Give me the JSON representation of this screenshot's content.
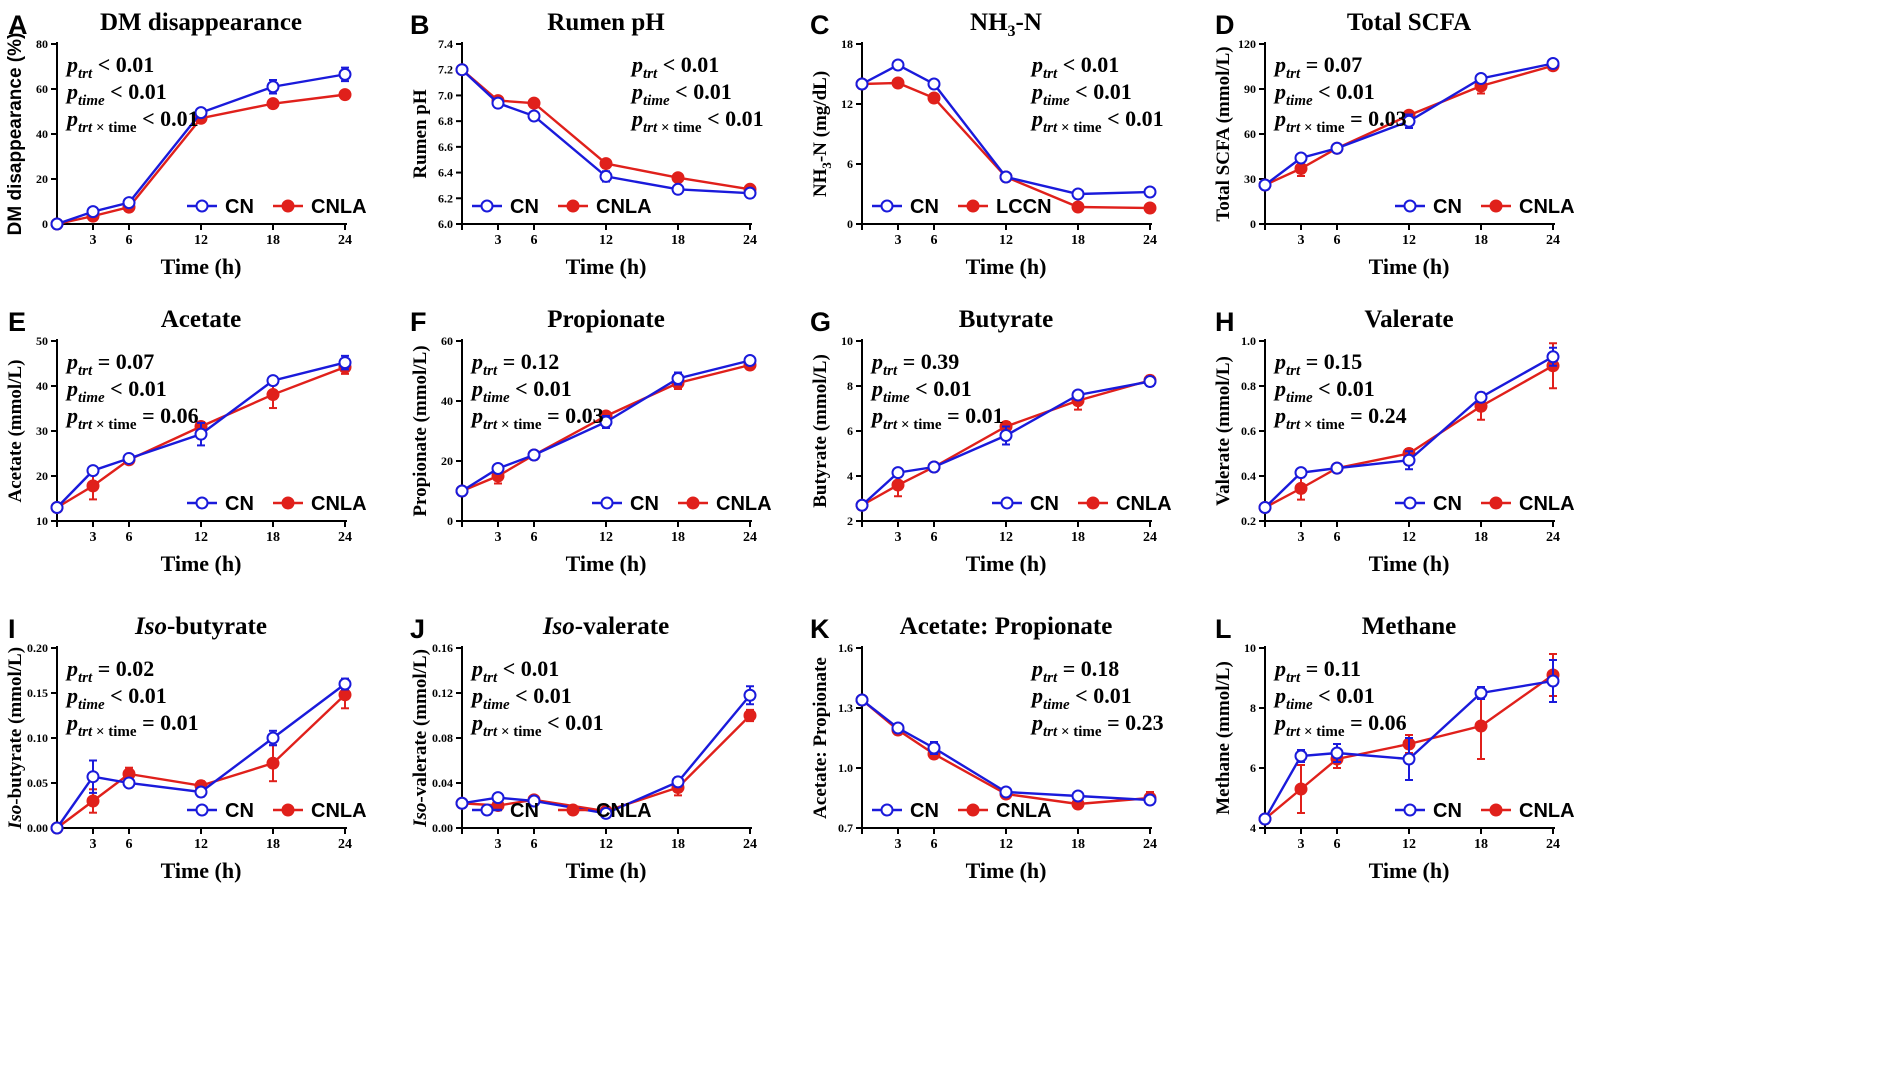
{
  "colors": {
    "cn": "#1a1adb",
    "trt": "#e0201b",
    "axis": "#000000"
  },
  "chart_data": [
    {
      "type": "line",
      "panel_letter": "A",
      "title": "DM disappearance",
      "title_parts": [],
      "ylabel": "DM disappearance (%)",
      "ylabel_parts": [],
      "xlabel": "Time (h)",
      "x": [
        0,
        3,
        6,
        12,
        18,
        24
      ],
      "ylim": [
        0,
        80
      ],
      "yticks": [
        0,
        20,
        40,
        60,
        80
      ],
      "ytick_labels": [
        "0",
        "20",
        "40",
        "60",
        "80"
      ],
      "series": [
        {
          "name": "CN",
          "values": [
            0,
            5.5,
            9.5,
            49.5,
            61,
            66.5
          ],
          "errors": [
            0,
            1,
            1,
            1.5,
            3,
            3
          ]
        },
        {
          "name": "CNLA",
          "values": [
            0,
            3.5,
            7.5,
            47,
            53.5,
            57.5
          ],
          "errors": [
            0,
            0.5,
            0.5,
            1,
            1,
            1
          ]
        }
      ],
      "stats": [
        {
          "name": "trt",
          "value": "< 0.01"
        },
        {
          "name": "time",
          "value": "< 0.01"
        },
        {
          "name": "trt × time",
          "value": "< 0.01"
        }
      ],
      "stats_pos": "top-left",
      "legend_pos": "bottom-right"
    },
    {
      "type": "line",
      "panel_letter": "B",
      "title": "Rumen pH",
      "title_parts": [],
      "ylabel": "Rumen pH",
      "ylabel_parts": [],
      "xlabel": "Time (h)",
      "x": [
        0,
        3,
        6,
        12,
        18,
        24
      ],
      "ylim": [
        6.0,
        7.4
      ],
      "yticks": [
        6.0,
        6.2,
        6.4,
        6.6,
        6.8,
        7.0,
        7.2,
        7.4
      ],
      "ytick_labels": [
        "6.0",
        "6.2",
        "6.4",
        "6.6",
        "6.8",
        "7.0",
        "7.2",
        "7.4"
      ],
      "series": [
        {
          "name": "CN",
          "values": [
            7.2,
            6.94,
            6.84,
            6.37,
            6.27,
            6.24
          ],
          "errors": [
            0,
            0.03,
            0.01,
            0.04,
            0.01,
            0.01
          ]
        },
        {
          "name": "CNLA",
          "values": [
            7.2,
            6.96,
            6.94,
            6.47,
            6.36,
            6.27
          ],
          "errors": [
            0,
            0.02,
            0.01,
            0.02,
            0.01,
            0.01
          ]
        }
      ],
      "stats": [
        {
          "name": "trt",
          "value": "< 0.01"
        },
        {
          "name": "time",
          "value": "< 0.01"
        },
        {
          "name": "trt × time",
          "value": "< 0.01"
        }
      ],
      "stats_pos": "top-right",
      "legend_pos": "bottom-left"
    },
    {
      "type": "line",
      "panel_letter": "C",
      "title": "NH3-N",
      "title_parts": [
        "NH",
        "3",
        "-N"
      ],
      "ylabel": "NH3-N (mg/dL)",
      "ylabel_parts": [
        "NH",
        "3",
        "-N (mg/dL)"
      ],
      "xlabel": "Time (h)",
      "x": [
        0,
        3,
        6,
        12,
        18,
        24
      ],
      "ylim": [
        0,
        18
      ],
      "yticks": [
        0,
        6,
        12,
        18
      ],
      "ytick_labels": [
        "0",
        "6",
        "12",
        "18"
      ],
      "series": [
        {
          "name": "CN",
          "values": [
            14,
            15.9,
            14,
            4.7,
            3,
            3.2
          ],
          "errors": [
            0,
            0.2,
            0.2,
            0.2,
            0.1,
            0.1
          ]
        },
        {
          "name": "LCCN",
          "values": [
            14,
            14.1,
            12.6,
            4.7,
            1.7,
            1.6
          ],
          "errors": [
            0,
            0.1,
            0.1,
            0.1,
            0.1,
            0.1
          ]
        }
      ],
      "stats": [
        {
          "name": "trt",
          "value": "< 0.01"
        },
        {
          "name": "time",
          "value": "< 0.01"
        },
        {
          "name": "trt × time",
          "value": "< 0.01"
        }
      ],
      "stats_pos": "top-right",
      "legend_pos": "bottom-left"
    },
    {
      "type": "line",
      "panel_letter": "D",
      "title": "Total SCFA",
      "title_parts": [],
      "ylabel": "Total SCFA (mmol/L)",
      "ylabel_parts": [],
      "xlabel": "Time (h)",
      "x": [
        0,
        3,
        6,
        12,
        18,
        24
      ],
      "ylim": [
        0,
        120
      ],
      "yticks": [
        0,
        30,
        60,
        90,
        120
      ],
      "ytick_labels": [
        "0",
        "30",
        "60",
        "90",
        "120"
      ],
      "series": [
        {
          "name": "CN",
          "values": [
            26,
            44,
            50.5,
            68.5,
            97,
            107
          ],
          "errors": [
            0,
            1,
            1,
            4.5,
            1.5,
            1.5
          ]
        },
        {
          "name": "CNLA",
          "values": [
            26,
            37,
            50.5,
            72.5,
            92,
            105.5
          ],
          "errors": [
            0,
            5,
            1,
            2,
            5,
            1.5
          ]
        }
      ],
      "stats": [
        {
          "name": "trt",
          "value": "= 0.07"
        },
        {
          "name": "time",
          "value": "< 0.01"
        },
        {
          "name": "trt × time",
          "value": "= 0.03"
        }
      ],
      "stats_pos": "top-left",
      "legend_pos": "bottom-right"
    },
    {
      "type": "line",
      "panel_letter": "E",
      "title": "Acetate",
      "title_parts": [],
      "ylabel": "Acetate (mmol/L)",
      "ylabel_parts": [],
      "xlabel": "Time (h)",
      "x": [
        0,
        3,
        6,
        12,
        18,
        24
      ],
      "ylim": [
        10,
        50
      ],
      "yticks": [
        10,
        20,
        30,
        40,
        50
      ],
      "ytick_labels": [
        "10",
        "20",
        "30",
        "40",
        "50"
      ],
      "series": [
        {
          "name": "CN",
          "values": [
            13,
            21.2,
            23.9,
            29.3,
            41.2,
            45.2
          ],
          "errors": [
            0,
            0.5,
            0.5,
            2.5,
            0.8,
            1.5
          ]
        },
        {
          "name": "CNLA",
          "values": [
            13,
            17.8,
            23.6,
            31,
            38.1,
            44.2
          ],
          "errors": [
            0,
            3,
            0.8,
            1,
            3,
            1.5
          ]
        }
      ],
      "stats": [
        {
          "name": "trt",
          "value": "= 0.07"
        },
        {
          "name": "time",
          "value": "< 0.01"
        },
        {
          "name": "trt × time",
          "value": "= 0.06"
        }
      ],
      "stats_pos": "top-left",
      "legend_pos": "bottom-right"
    },
    {
      "type": "line",
      "panel_letter": "F",
      "title": "Propionate",
      "title_parts": [],
      "ylabel": "Propionate (mmol/L)",
      "ylabel_parts": [],
      "xlabel": "Time (h)",
      "x": [
        0,
        3,
        6,
        12,
        18,
        24
      ],
      "ylim": [
        0,
        60
      ],
      "yticks": [
        0,
        20,
        40,
        60
      ],
      "ytick_labels": [
        "0",
        "20",
        "40",
        "60"
      ],
      "series": [
        {
          "name": "CN",
          "values": [
            10,
            17.5,
            22,
            33,
            47.5,
            53.5
          ],
          "errors": [
            0,
            1,
            0.5,
            2,
            2,
            1
          ]
        },
        {
          "name": "CNLA",
          "values": [
            10,
            15,
            22,
            35,
            46,
            52
          ],
          "errors": [
            0,
            2.5,
            0.5,
            1,
            2,
            1
          ]
        }
      ],
      "stats": [
        {
          "name": "trt",
          "value": "= 0.12"
        },
        {
          "name": "time",
          "value": "< 0.01"
        },
        {
          "name": "trt × time",
          "value": "= 0.03"
        }
      ],
      "stats_pos": "top-left",
      "legend_pos": "bottom-right"
    },
    {
      "type": "line",
      "panel_letter": "G",
      "title": "Butyrate",
      "title_parts": [],
      "ylabel": "Butyrate (mmol/L)",
      "ylabel_parts": [],
      "xlabel": "Time (h)",
      "x": [
        0,
        3,
        6,
        12,
        18,
        24
      ],
      "ylim": [
        2,
        10
      ],
      "yticks": [
        2,
        4,
        6,
        8,
        10
      ],
      "ytick_labels": [
        "2",
        "4",
        "6",
        "8",
        "10"
      ],
      "series": [
        {
          "name": "CN",
          "values": [
            2.7,
            4.15,
            4.4,
            5.8,
            7.6,
            8.2
          ],
          "errors": [
            0,
            0.1,
            0.1,
            0.4,
            0.1,
            0.2
          ]
        },
        {
          "name": "CNLA",
          "values": [
            2.7,
            3.6,
            4.4,
            6.2,
            7.35,
            8.25
          ],
          "errors": [
            0,
            0.5,
            0.1,
            0.2,
            0.4,
            0.2
          ]
        }
      ],
      "stats": [
        {
          "name": "trt",
          "value": "= 0.39"
        },
        {
          "name": "time",
          "value": "< 0.01"
        },
        {
          "name": "trt × time",
          "value": "= 0.01"
        }
      ],
      "stats_pos": "top-left",
      "legend_pos": "bottom-right"
    },
    {
      "type": "line",
      "panel_letter": "H",
      "title": "Valerate",
      "title_parts": [],
      "ylabel": "Valerate (mmol/L)",
      "ylabel_parts": [],
      "xlabel": "Time (h)",
      "x": [
        0,
        3,
        6,
        12,
        18,
        24
      ],
      "ylim": [
        0.2,
        1.0
      ],
      "yticks": [
        0.2,
        0.4,
        0.6,
        0.8,
        1.0
      ],
      "ytick_labels": [
        "0.2",
        "0.4",
        "0.6",
        "0.8",
        "1.0"
      ],
      "series": [
        {
          "name": "CN",
          "values": [
            0.26,
            0.415,
            0.435,
            0.47,
            0.75,
            0.93
          ],
          "errors": [
            0,
            0.01,
            0.01,
            0.04,
            0.02,
            0.04
          ]
        },
        {
          "name": "CNLA",
          "values": [
            0.26,
            0.345,
            0.435,
            0.5,
            0.71,
            0.89
          ],
          "errors": [
            0,
            0.05,
            0.01,
            0.02,
            0.06,
            0.1
          ]
        }
      ],
      "stats": [
        {
          "name": "trt",
          "value": "= 0.15"
        },
        {
          "name": "time",
          "value": "< 0.01"
        },
        {
          "name": "trt × time",
          "value": "= 0.24"
        }
      ],
      "stats_pos": "top-left",
      "legend_pos": "bottom-right"
    },
    {
      "type": "line",
      "panel_letter": "I",
      "title": "Iso-butyrate",
      "title_parts": [
        "Iso",
        "-butyrate"
      ],
      "ylabel": "Iso-butyrate (mmol/L)",
      "ylabel_parts": [
        "Iso",
        "-butyrate (mmol/L)"
      ],
      "xlabel": "Time (h)",
      "x": [
        0,
        3,
        6,
        12,
        18,
        24
      ],
      "ylim": [
        0,
        0.2
      ],
      "yticks": [
        0,
        0.05,
        0.1,
        0.15,
        0.2
      ],
      "ytick_labels": [
        "0.00",
        "0.05",
        "0.10",
        "0.15",
        "0.20"
      ],
      "series": [
        {
          "name": "CN",
          "values": [
            0,
            0.057,
            0.05,
            0.04,
            0.1,
            0.16
          ],
          "errors": [
            0,
            0.018,
            0.003,
            0.005,
            0.008,
            0.006
          ]
        },
        {
          "name": "CNLA",
          "values": [
            0,
            0.03,
            0.06,
            0.047,
            0.072,
            0.148
          ],
          "errors": [
            0,
            0.013,
            0.007,
            0.005,
            0.02,
            0.015
          ]
        }
      ],
      "stats": [
        {
          "name": "trt",
          "value": "= 0.02"
        },
        {
          "name": "time",
          "value": "< 0.01"
        },
        {
          "name": "trt × time",
          "value": "= 0.01"
        }
      ],
      "stats_pos": "top-left",
      "legend_pos": "bottom-right"
    },
    {
      "type": "line",
      "panel_letter": "J",
      "title": "Iso-valerate",
      "title_parts": [
        "Iso",
        "-valerate"
      ],
      "ylabel": "Iso-valerate (mmol/L)",
      "ylabel_parts": [
        "Iso",
        "-valerate (mmol/L)"
      ],
      "xlabel": "Time (h)",
      "x": [
        0,
        3,
        6,
        12,
        18,
        24
      ],
      "ylim": [
        0,
        0.16
      ],
      "yticks": [
        0,
        0.04,
        0.08,
        0.12,
        0.16
      ],
      "ytick_labels": [
        "0.00",
        "0.04",
        "0.08",
        "0.12",
        "0.16"
      ],
      "series": [
        {
          "name": "CN",
          "values": [
            0.022,
            0.027,
            0.024,
            0.013,
            0.041,
            0.118
          ],
          "errors": [
            0,
            0.002,
            0.002,
            0.001,
            0.004,
            0.008
          ]
        },
        {
          "name": "CNLA",
          "values": [
            0.022,
            0.02,
            0.025,
            0.015,
            0.036,
            0.1
          ],
          "errors": [
            0,
            0.003,
            0.002,
            0.001,
            0.007,
            0.005
          ]
        }
      ],
      "stats": [
        {
          "name": "trt",
          "value": "< 0.01"
        },
        {
          "name": "time",
          "value": "< 0.01"
        },
        {
          "name": "trt × time",
          "value": "< 0.01"
        }
      ],
      "stats_pos": "top-left",
      "legend_pos": "bottom-left"
    },
    {
      "type": "line",
      "panel_letter": "K",
      "title": "Acetate: Propionate",
      "title_parts": [],
      "ylabel": "Acetate: Propionate",
      "ylabel_parts": [],
      "xlabel": "Time (h)",
      "x": [
        0,
        3,
        6,
        12,
        18,
        24
      ],
      "ylim": [
        0.7,
        1.6
      ],
      "yticks": [
        0.7,
        1.0,
        1.3,
        1.6
      ],
      "ytick_labels": [
        "0.7",
        "1.0",
        "1.3",
        "1.6"
      ],
      "series": [
        {
          "name": "CN",
          "values": [
            1.34,
            1.2,
            1.1,
            0.88,
            0.86,
            0.84
          ],
          "errors": [
            0,
            0.01,
            0.03,
            0.02,
            0.01,
            0.02
          ]
        },
        {
          "name": "CNLA",
          "values": [
            1.34,
            1.19,
            1.07,
            0.87,
            0.82,
            0.85
          ],
          "errors": [
            0,
            0.01,
            0.02,
            0.02,
            0.02,
            0.03
          ]
        }
      ],
      "stats": [
        {
          "name": "trt",
          "value": "= 0.18"
        },
        {
          "name": "time",
          "value": "< 0.01"
        },
        {
          "name": "trt × time",
          "value": "= 0.23"
        }
      ],
      "stats_pos": "top-right",
      "legend_pos": "bottom-left"
    },
    {
      "type": "line",
      "panel_letter": "L",
      "title": "Methane",
      "title_parts": [],
      "ylabel": "Methane (mmol/L)",
      "ylabel_parts": [],
      "xlabel": "Time (h)",
      "x": [
        0,
        3,
        6,
        12,
        18,
        24
      ],
      "ylim": [
        4,
        10
      ],
      "yticks": [
        4,
        6,
        8,
        10
      ],
      "ytick_labels": [
        "4",
        "6",
        "8",
        "10"
      ],
      "series": [
        {
          "name": "CN",
          "values": [
            4.3,
            6.4,
            6.5,
            6.3,
            8.5,
            8.9
          ],
          "errors": [
            0,
            0.2,
            0.3,
            0.7,
            0.2,
            0.7
          ]
        },
        {
          "name": "CNLA",
          "values": [
            4.3,
            5.3,
            6.3,
            6.8,
            7.4,
            9.1
          ],
          "errors": [
            0,
            0.8,
            0.3,
            0.3,
            1.1,
            0.7
          ]
        }
      ],
      "stats": [
        {
          "name": "trt",
          "value": "= 0.11"
        },
        {
          "name": "time",
          "value": "< 0.01"
        },
        {
          "name": "trt × time",
          "value": "= 0.06"
        }
      ],
      "stats_pos": "top-left",
      "legend_pos": "bottom-right"
    }
  ]
}
